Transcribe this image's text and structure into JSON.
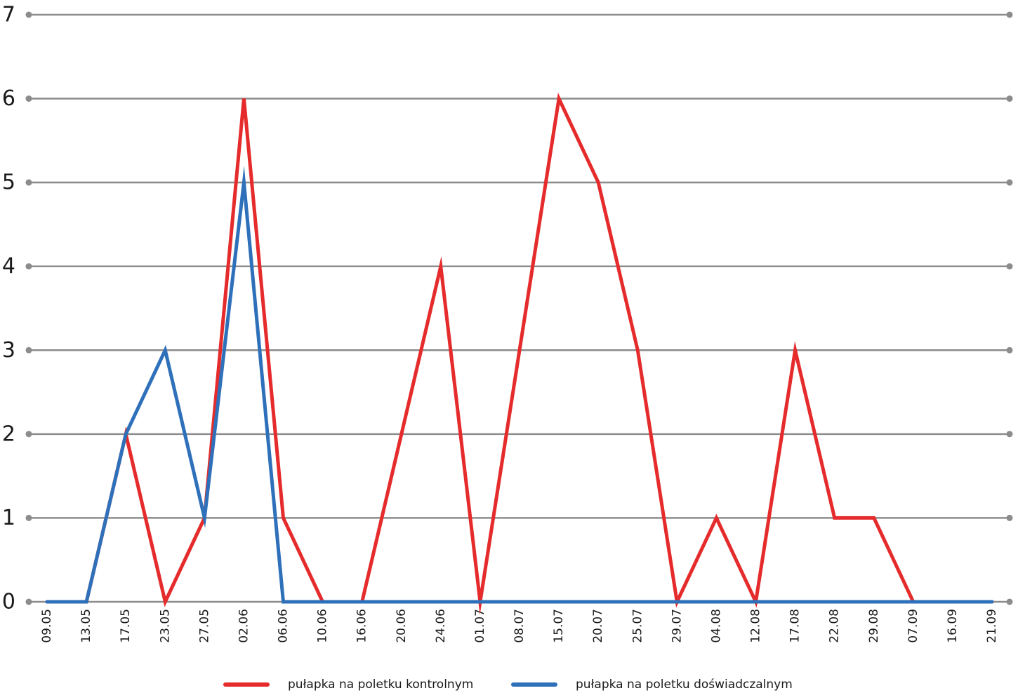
{
  "chart_data": {
    "type": "line",
    "title": "",
    "xlabel": "",
    "ylabel": "",
    "ylim": [
      0,
      7
    ],
    "yticks": [
      "0",
      "1",
      "2",
      "3",
      "4",
      "5",
      "6",
      "7"
    ],
    "grid": true,
    "legend_position": "bottom",
    "categories": [
      "09.05",
      "13.05",
      "17.05",
      "23.05",
      "27.05",
      "02.06",
      "06.06",
      "10.06",
      "16.06",
      "20.06",
      "24.06",
      "01.07",
      "08.07",
      "15.07",
      "20.07",
      "25.07",
      "29.07",
      "04.08",
      "12.08",
      "17.08",
      "22.08",
      "29.08",
      "07.09",
      "16.09",
      "21.09"
    ],
    "series": [
      {
        "name": "pułapka na poletku kontrolnym",
        "color": "#e52b2b",
        "values": [
          0,
          0,
          2,
          0,
          1,
          6,
          1,
          0,
          0,
          2,
          4,
          0,
          3,
          6,
          5,
          3,
          0,
          1,
          0,
          3,
          1,
          1,
          0,
          0,
          0
        ]
      },
      {
        "name": "pułapka na poletku doświadczalnym",
        "color": "#2f70ba",
        "values": [
          0,
          0,
          2,
          3,
          1,
          5,
          0,
          0,
          0,
          0,
          0,
          0,
          0,
          0,
          0,
          0,
          0,
          0,
          0,
          0,
          0,
          0,
          0,
          0,
          0
        ]
      }
    ]
  },
  "colors": {
    "grid": "#8c8c8c",
    "text": "#1a1a1a"
  }
}
